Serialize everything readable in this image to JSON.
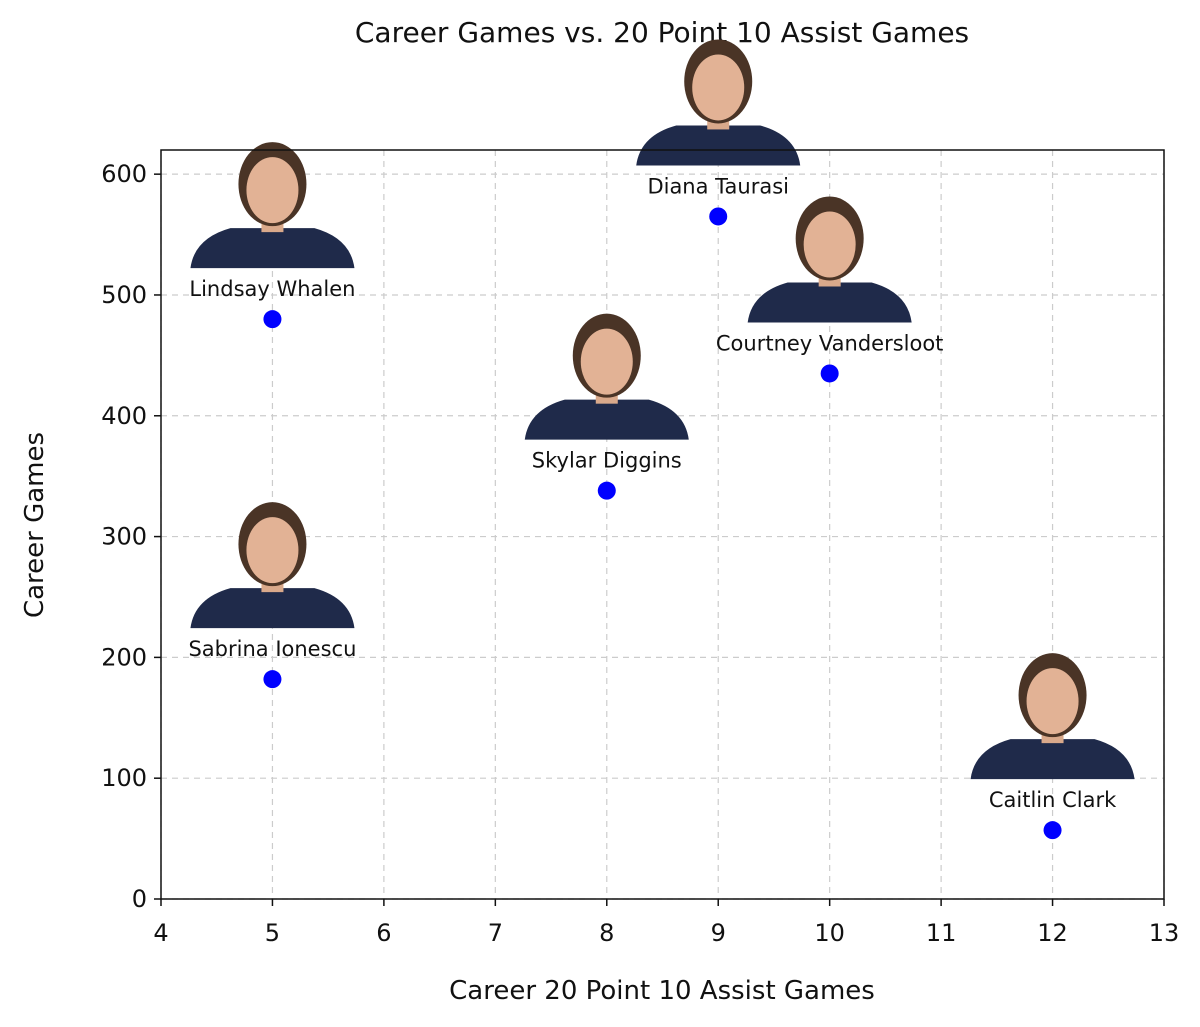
{
  "chart_data": {
    "type": "scatter",
    "title": "Career Games vs. 20 Point 10 Assist Games",
    "xlabel": "Career 20 Point 10 Assist Games",
    "ylabel": "Career Games",
    "xlim": [
      4,
      13
    ],
    "ylim": [
      0,
      620
    ],
    "xticks": [
      4,
      5,
      6,
      7,
      8,
      9,
      10,
      11,
      12,
      13
    ],
    "yticks": [
      0,
      100,
      200,
      300,
      400,
      500,
      600
    ],
    "grid": true,
    "point_color": "#0000ff",
    "points": [
      {
        "label": "Lindsay Whalen",
        "x": 5,
        "y": 480,
        "icon": "player-headshot"
      },
      {
        "label": "Sabrina Ionescu",
        "x": 5,
        "y": 182,
        "icon": "player-headshot"
      },
      {
        "label": "Skylar Diggins",
        "x": 8,
        "y": 338,
        "icon": "player-headshot"
      },
      {
        "label": "Diana Taurasi",
        "x": 9,
        "y": 565,
        "icon": "player-headshot"
      },
      {
        "label": "Courtney Vandersloot",
        "x": 10,
        "y": 435,
        "icon": "player-headshot"
      },
      {
        "label": "Caitlin Clark",
        "x": 12,
        "y": 57,
        "icon": "player-headshot"
      }
    ]
  }
}
